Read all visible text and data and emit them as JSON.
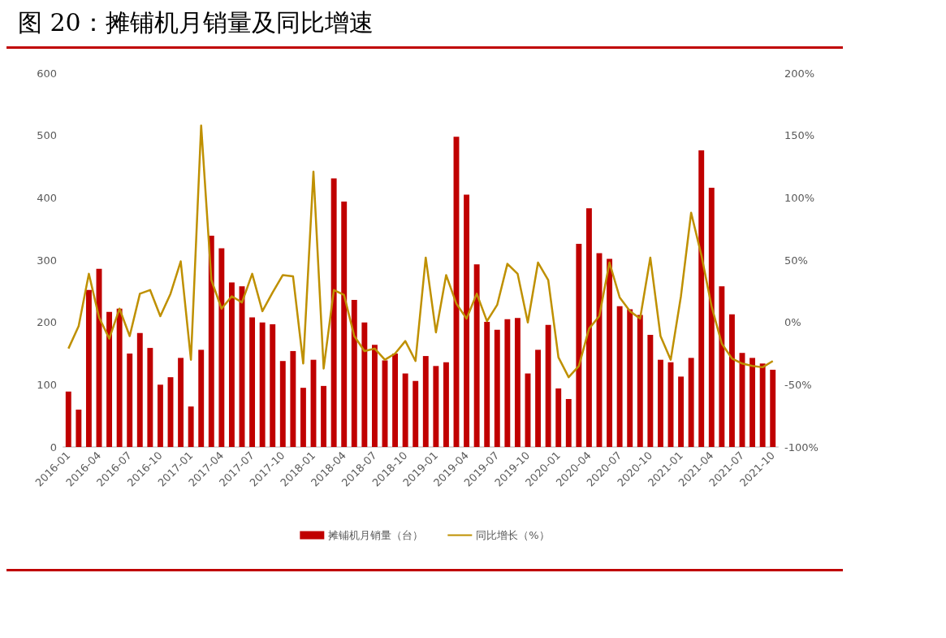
{
  "chart_data": {
    "type": "bar",
    "title": "图 20：摊铺机月销量及同比增速",
    "categories": [
      "2016-01",
      null,
      null,
      "2016-04",
      null,
      null,
      "2016-07",
      null,
      null,
      "2016-10",
      null,
      null,
      "2017-01",
      null,
      null,
      "2017-04",
      null,
      null,
      "2017-07",
      null,
      null,
      "2017-10",
      null,
      null,
      "2018-01",
      null,
      null,
      "2018-04",
      null,
      null,
      "2018-07",
      null,
      null,
      "2018-10",
      null,
      null,
      "2019-01",
      null,
      null,
      "2019-04",
      null,
      null,
      "2019-07",
      null,
      null,
      "2019-10",
      null,
      null,
      "2020-01",
      null,
      null,
      "2020-04",
      null,
      null,
      "2020-07",
      null,
      null,
      "2020-10",
      null,
      null,
      "2021-01",
      null,
      null,
      "2021-04",
      null,
      null,
      "2021-07",
      null,
      null,
      "2021-10"
    ],
    "series": [
      {
        "name": "摊铺机月销量（台）",
        "color": "#c00000",
        "values": [
          89,
          60,
          252,
          286,
          217,
          222,
          150,
          183,
          159,
          100,
          112,
          143,
          65,
          156,
          339,
          319,
          264,
          258,
          208,
          200,
          197,
          138,
          154,
          95,
          140,
          98,
          431,
          394,
          236,
          200,
          164,
          139,
          150,
          118,
          106,
          146,
          130,
          136,
          498,
          405,
          293,
          201,
          188,
          205,
          207,
          118,
          156,
          196,
          94,
          77,
          326,
          383,
          311,
          302,
          226,
          221,
          212,
          180,
          140,
          136,
          113,
          143,
          476,
          416,
          258,
          213,
          151,
          143,
          134,
          124
        ]
      },
      {
        "name": "同比增长（%）",
        "type": "line",
        "axis": "y2",
        "color": "#bf9000",
        "values": [
          -21,
          -3,
          39,
          4,
          -13,
          11,
          -11,
          23,
          26,
          5,
          23,
          49,
          -30,
          158,
          34,
          11,
          21,
          16,
          39,
          9,
          24,
          38,
          37,
          -33,
          121,
          -37,
          26,
          22,
          -11,
          -23,
          -21,
          -30,
          -25,
          -15,
          -31,
          52,
          -8,
          38,
          15,
          3,
          23,
          1,
          14,
          47,
          39,
          0,
          48,
          34,
          -28,
          -44,
          -35,
          -5,
          5,
          48,
          20,
          9,
          3,
          52,
          -11,
          -30,
          21,
          88,
          54,
          13,
          -17,
          -29,
          -33,
          -35,
          -36,
          -31
        ]
      }
    ],
    "ylim": [
      0,
      600
    ],
    "yticks": [
      0,
      100,
      200,
      300,
      400,
      500,
      600
    ],
    "y2lim": [
      -100,
      200
    ],
    "y2ticks": [
      {
        "value": -100,
        "label": "-100%"
      },
      {
        "value": -50,
        "label": "-50%"
      },
      {
        "value": 0,
        "label": "0%"
      },
      {
        "value": 50,
        "label": "50%"
      },
      {
        "value": 100,
        "label": "100%"
      },
      {
        "value": 150,
        "label": "150%"
      },
      {
        "value": 200,
        "label": "200%"
      }
    ],
    "grid": false,
    "legend": "bottom",
    "marker": "none",
    "line_style": "solid"
  }
}
